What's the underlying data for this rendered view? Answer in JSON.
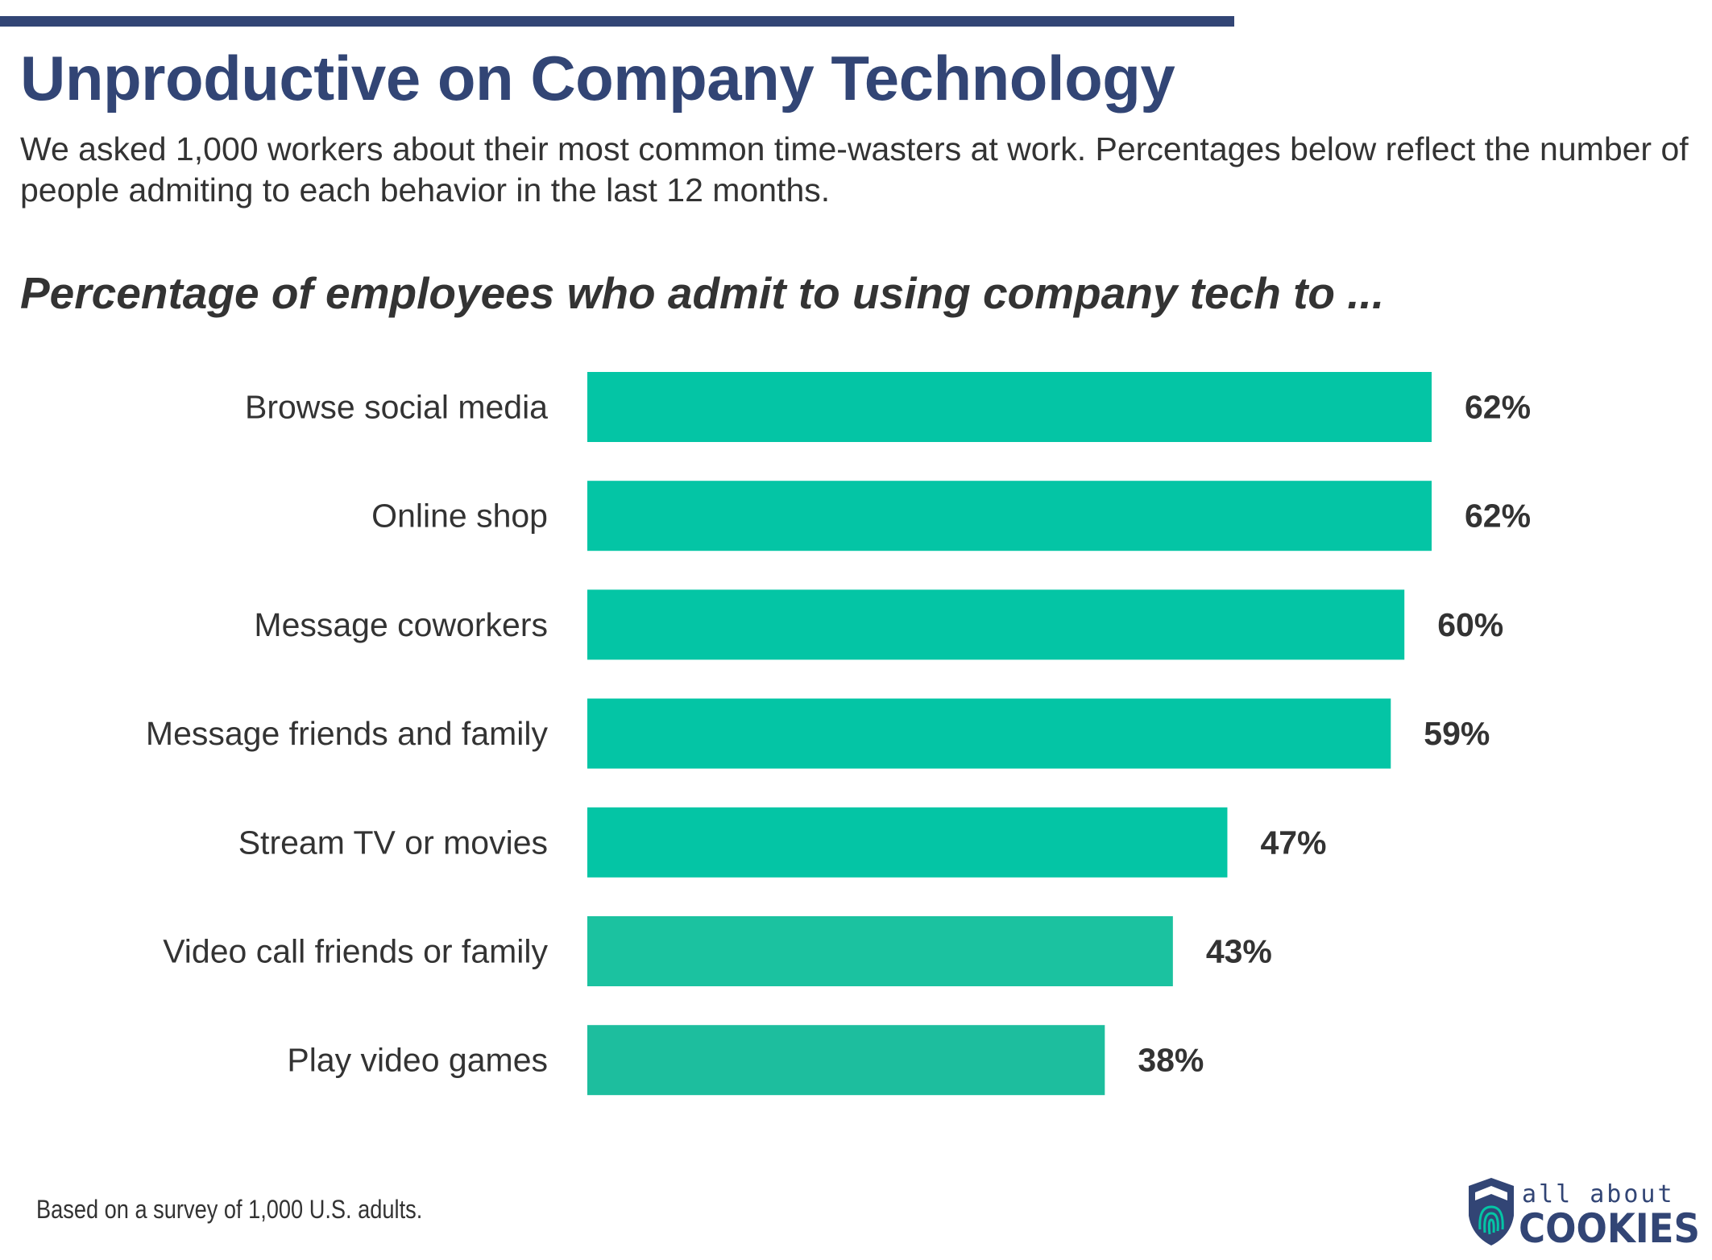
{
  "title": "Unproductive on Company Technology",
  "subtitle": "We asked 1,000 workers about their most common time-wasters at work. Percentages below reflect the number of people admiting to each behavior in the last 12 months.",
  "footnote": "Based on a survey of 1,000 U.S. adults.",
  "logo": {
    "line1": "all about",
    "line2": "COOKIES"
  },
  "colors": {
    "title": "#324575",
    "bar": "#04C5A5",
    "text": "#333333"
  },
  "chart_data": {
    "type": "bar",
    "orientation": "horizontal",
    "title": "Percentage of employees who admit to using company tech to ...",
    "categories": [
      "Browse social media",
      "Online shop",
      "Message coworkers",
      "Message friends and family",
      "Stream TV or movies",
      "Video call friends or family",
      "Play video games"
    ],
    "values": [
      62,
      62,
      60,
      59,
      47,
      43,
      38
    ],
    "data_labels": [
      "62%",
      "62%",
      "60%",
      "59%",
      "47%",
      "43%",
      "38%"
    ],
    "bar_colors": [
      "#04C5A5",
      "#04C5A5",
      "#04C5A5",
      "#04C5A5",
      "#04C5A5",
      "#1BC2A0",
      "#1DBE9E"
    ],
    "xlim": [
      0,
      62
    ],
    "grid": false,
    "axes_visible": false
  }
}
